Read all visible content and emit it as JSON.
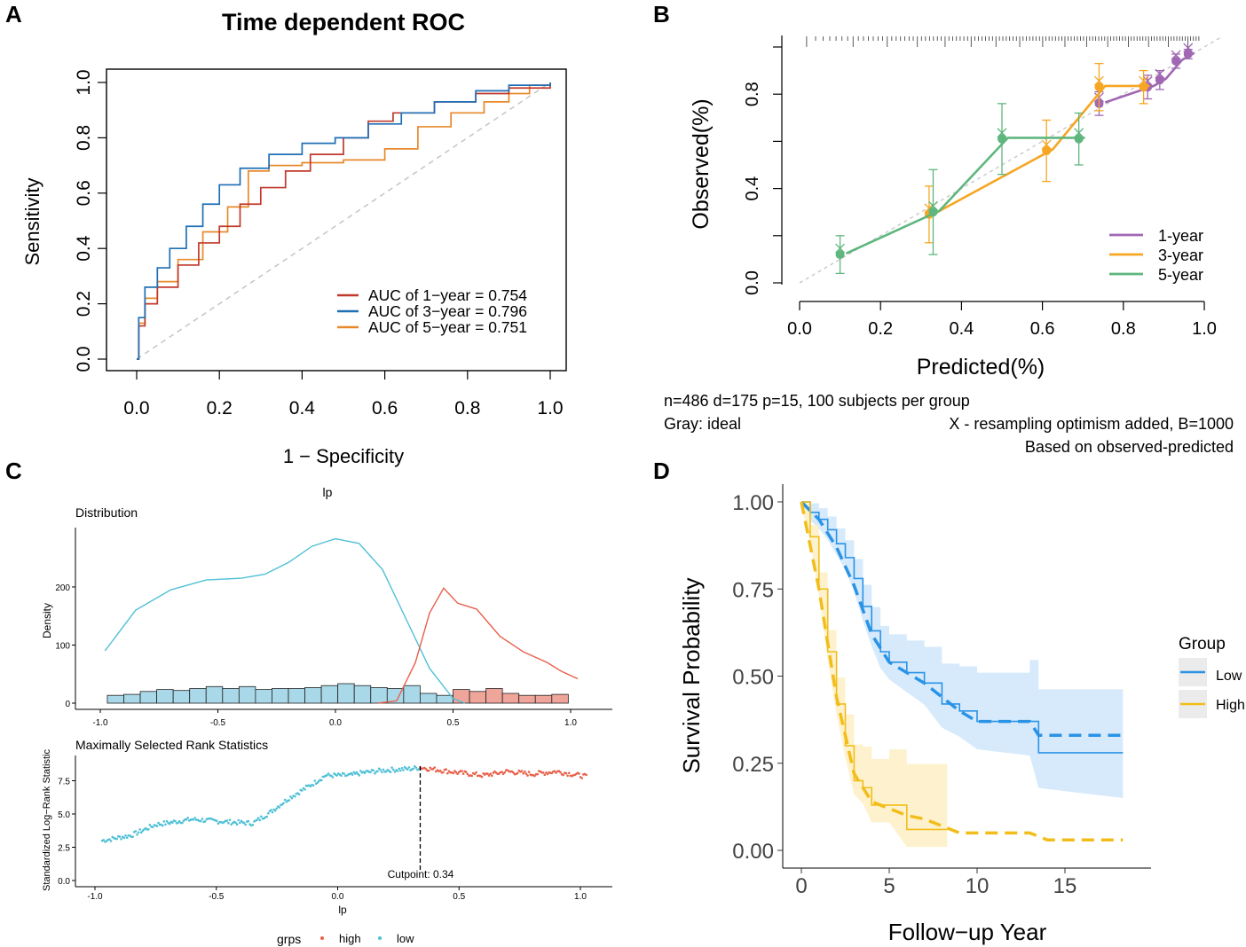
{
  "colors": {
    "red": "#c0392b",
    "blue": "#1f6fb5",
    "orange": "#e8892b",
    "purple": "#a067b3",
    "cal_orange": "#f6a623",
    "green": "#5fb67e",
    "teal": "#4fc0d6",
    "coral": "#e8604b",
    "surv_low": "#2a93e6",
    "surv_high": "#f2bd1a",
    "ci_low": "#cfe6fb",
    "ci_high": "#fdf1c8",
    "ideal": "#c8c8c8"
  },
  "chart_data": [
    {
      "panel": "A",
      "type": "line",
      "title": "Time dependent ROC",
      "xlabel": "1 − Specificity",
      "ylabel": "Sensitivity",
      "xlim": [
        0,
        1
      ],
      "ylim": [
        0,
        1
      ],
      "xticks": [
        "0.0",
        "0.2",
        "0.4",
        "0.6",
        "0.8",
        "1.0"
      ],
      "yticks": [
        "0.0",
        "0.2",
        "0.4",
        "0.6",
        "0.8",
        "1.0"
      ],
      "legend": [
        "AUC of 1−year = 0.754",
        "AUC of 3−year = 0.796",
        "AUC of 5−year = 0.751"
      ],
      "series": [
        {
          "name": "1-year",
          "color": "red",
          "points": [
            [
              0,
              0
            ],
            [
              0.005,
              0.12
            ],
            [
              0.02,
              0.2
            ],
            [
              0.05,
              0.26
            ],
            [
              0.1,
              0.34
            ],
            [
              0.15,
              0.42
            ],
            [
              0.2,
              0.48
            ],
            [
              0.25,
              0.56
            ],
            [
              0.3,
              0.62
            ],
            [
              0.36,
              0.68
            ],
            [
              0.42,
              0.74
            ],
            [
              0.5,
              0.8
            ],
            [
              0.56,
              0.86
            ],
            [
              0.62,
              0.89
            ],
            [
              0.72,
              0.93
            ],
            [
              0.82,
              0.96
            ],
            [
              0.9,
              0.98
            ],
            [
              1,
              1
            ]
          ]
        },
        {
          "name": "3-year",
          "color": "blue",
          "points": [
            [
              0,
              0
            ],
            [
              0.005,
              0.15
            ],
            [
              0.02,
              0.26
            ],
            [
              0.05,
              0.33
            ],
            [
              0.08,
              0.4
            ],
            [
              0.12,
              0.48
            ],
            [
              0.16,
              0.56
            ],
            [
              0.2,
              0.63
            ],
            [
              0.25,
              0.69
            ],
            [
              0.32,
              0.74
            ],
            [
              0.4,
              0.78
            ],
            [
              0.48,
              0.8
            ],
            [
              0.56,
              0.85
            ],
            [
              0.64,
              0.89
            ],
            [
              0.72,
              0.93
            ],
            [
              0.82,
              0.97
            ],
            [
              0.9,
              0.99
            ],
            [
              1,
              1
            ]
          ]
        },
        {
          "name": "5-year",
          "color": "orange",
          "points": [
            [
              0,
              0
            ],
            [
              0.005,
              0.13
            ],
            [
              0.02,
              0.22
            ],
            [
              0.05,
              0.28
            ],
            [
              0.1,
              0.36
            ],
            [
              0.16,
              0.46
            ],
            [
              0.22,
              0.55
            ],
            [
              0.27,
              0.68
            ],
            [
              0.32,
              0.7
            ],
            [
              0.4,
              0.71
            ],
            [
              0.5,
              0.72
            ],
            [
              0.6,
              0.76
            ],
            [
              0.68,
              0.84
            ],
            [
              0.76,
              0.89
            ],
            [
              0.84,
              0.93
            ],
            [
              0.9,
              0.96
            ],
            [
              0.95,
              0.99
            ],
            [
              1,
              1
            ]
          ]
        }
      ]
    },
    {
      "panel": "B",
      "type": "line",
      "xlabel": "Predicted(%)",
      "ylabel": "Observed(%)",
      "xlim": [
        0,
        1
      ],
      "ylim": [
        0,
        1
      ],
      "xticks": [
        "0.0",
        "0.2",
        "0.4",
        "0.6",
        "0.8",
        "1.0"
      ],
      "yticks": [
        "0.0",
        "0.4",
        "0.8"
      ],
      "legend": [
        "1-year",
        "3-year",
        "5-year"
      ],
      "series": [
        {
          "name": "1-year",
          "color": "purple",
          "points": [
            [
              0.74,
              0.76
            ],
            [
              0.86,
              0.83
            ],
            [
              0.89,
              0.86
            ],
            [
              0.93,
              0.94
            ],
            [
              0.96,
              0.97
            ]
          ],
          "err": [
            0.05,
            0.05,
            0.04,
            0.03,
            0.02
          ]
        },
        {
          "name": "3-year",
          "color": "cal_orange",
          "points": [
            [
              0.32,
              0.29
            ],
            [
              0.61,
              0.56
            ],
            [
              0.74,
              0.83
            ],
            [
              0.85,
              0.83
            ]
          ],
          "err": [
            0.12,
            0.13,
            0.1,
            0.07
          ]
        },
        {
          "name": "5-year",
          "color": "green",
          "points": [
            [
              0.1,
              0.12
            ],
            [
              0.33,
              0.3
            ],
            [
              0.5,
              0.61
            ],
            [
              0.69,
              0.61
            ]
          ],
          "err": [
            0.08,
            0.18,
            0.15,
            0.11
          ]
        }
      ],
      "notes": {
        "line1": "n=486 d=175 p=15, 100 subjects per group",
        "line2": "Gray: ideal",
        "line3": "X - resampling optimism added, B=1000",
        "line4": "Based on observed-predicted"
      }
    },
    {
      "panel": "C-top",
      "type": "area",
      "title": "lp",
      "subtitle": "Distribution",
      "ylabel": "Density",
      "xlim": [
        -1,
        1.05
      ],
      "ylim": [
        0,
        290
      ],
      "xticks": [
        "-1.0",
        "-0.5",
        "0.0",
        "0.5",
        "1.0"
      ],
      "yticks": [
        "0",
        "100",
        "200"
      ],
      "series": [
        {
          "name": "low",
          "color": "teal",
          "points": [
            [
              -0.98,
              90
            ],
            [
              -0.85,
              160
            ],
            [
              -0.7,
              195
            ],
            [
              -0.55,
              212
            ],
            [
              -0.4,
              215
            ],
            [
              -0.3,
              222
            ],
            [
              -0.2,
              242
            ],
            [
              -0.1,
              270
            ],
            [
              0,
              283
            ],
            [
              0.1,
              275
            ],
            [
              0.2,
              230
            ],
            [
              0.3,
              145
            ],
            [
              0.4,
              60
            ],
            [
              0.5,
              8
            ],
            [
              0.55,
              0
            ]
          ]
        },
        {
          "name": "high",
          "color": "coral",
          "points": [
            [
              0.18,
              0
            ],
            [
              0.26,
              4
            ],
            [
              0.34,
              70
            ],
            [
              0.4,
              155
            ],
            [
              0.46,
              198
            ],
            [
              0.52,
              172
            ],
            [
              0.6,
              162
            ],
            [
              0.7,
              115
            ],
            [
              0.8,
              88
            ],
            [
              0.9,
              70
            ],
            [
              0.96,
              55
            ],
            [
              1.03,
              42
            ]
          ]
        }
      ],
      "histogram": {
        "bins": [
          -0.97,
          -0.9,
          -0.83,
          -0.76,
          -0.69,
          -0.62,
          -0.55,
          -0.48,
          -0.41,
          -0.34,
          -0.27,
          -0.2,
          -0.13,
          -0.06,
          0.01,
          0.08,
          0.15,
          0.22,
          0.29,
          0.36,
          0.43,
          0.5,
          0.57,
          0.64,
          0.71,
          0.78,
          0.85,
          0.92,
          0.99
        ],
        "counts": [
          8,
          9,
          12,
          14,
          13,
          15,
          17,
          15,
          17,
          14,
          15,
          15,
          16,
          18,
          20,
          18,
          16,
          15,
          18,
          10,
          8,
          14,
          12,
          15,
          10,
          8,
          8,
          9
        ],
        "groups": [
          "low",
          "low",
          "low",
          "low",
          "low",
          "low",
          "low",
          "low",
          "low",
          "low",
          "low",
          "low",
          "low",
          "low",
          "low",
          "low",
          "low",
          "low",
          "low",
          "low",
          "low",
          "high",
          "high",
          "high",
          "high",
          "high",
          "high",
          "high"
        ]
      }
    },
    {
      "panel": "C-bottom",
      "type": "scatter",
      "subtitle": "Maximally Selected Rank Statistics",
      "xlabel": "lp",
      "ylabel": "Standardized Log−Rank Statistic",
      "xlim": [
        -1,
        1.05
      ],
      "ylim": [
        0,
        9
      ],
      "xticks": [
        "-1.0",
        "-0.5",
        "0.0",
        "0.5",
        "1.0"
      ],
      "yticks": [
        "0.0",
        "2.5",
        "5.0",
        "7.5"
      ],
      "cutpoint": 0.34,
      "cutpoint_label": "Cutpoint: 0.34",
      "legend_title": "grps",
      "legend": [
        "high",
        "low"
      ],
      "curve": [
        [
          -0.97,
          3.0
        ],
        [
          -0.85,
          3.4
        ],
        [
          -0.75,
          4.2
        ],
        [
          -0.6,
          4.6
        ],
        [
          -0.45,
          4.4
        ],
        [
          -0.35,
          4.3
        ],
        [
          -0.28,
          5.1
        ],
        [
          -0.2,
          6.2
        ],
        [
          -0.1,
          7.3
        ],
        [
          -0.05,
          7.9
        ],
        [
          0.05,
          7.9
        ],
        [
          0.1,
          8.1
        ],
        [
          0.2,
          8.3
        ],
        [
          0.3,
          8.4
        ],
        [
          0.34,
          8.5
        ],
        [
          0.5,
          8.1
        ],
        [
          0.6,
          7.9
        ],
        [
          0.7,
          8.2
        ],
        [
          0.8,
          8.0
        ],
        [
          0.9,
          8.2
        ],
        [
          1.03,
          7.8
        ]
      ]
    },
    {
      "panel": "D",
      "type": "line",
      "xlabel": "Follow−up Year",
      "ylabel": "Survival Probability",
      "xlim": [
        0,
        19
      ],
      "ylim": [
        0,
        1
      ],
      "xticks": [
        "0",
        "5",
        "10",
        "15"
      ],
      "yticks": [
        "0.00",
        "0.25",
        "0.50",
        "0.75",
        "1.00"
      ],
      "legend_title": "Group",
      "legend": [
        "Low",
        "High"
      ],
      "series": [
        {
          "name": "Low",
          "color": "surv_low",
          "points": [
            [
              0,
              1
            ],
            [
              0.5,
              0.97
            ],
            [
              1,
              0.95
            ],
            [
              1.5,
              0.92
            ],
            [
              2,
              0.88
            ],
            [
              2.5,
              0.84
            ],
            [
              3,
              0.78
            ],
            [
              3.5,
              0.7
            ],
            [
              4,
              0.63
            ],
            [
              4.5,
              0.57
            ],
            [
              5,
              0.54
            ],
            [
              6,
              0.51
            ],
            [
              7,
              0.48
            ],
            [
              8,
              0.42
            ],
            [
              9,
              0.4
            ],
            [
              10,
              0.37
            ],
            [
              13,
              0.37
            ],
            [
              13.5,
              0.28
            ],
            [
              18.3,
              0.28
            ]
          ]
        },
        {
          "name": "High",
          "color": "surv_high",
          "points": [
            [
              0,
              1
            ],
            [
              0.5,
              0.9
            ],
            [
              1,
              0.75
            ],
            [
              1.5,
              0.57
            ],
            [
              2,
              0.42
            ],
            [
              2.5,
              0.3
            ],
            [
              3,
              0.2
            ],
            [
              3.5,
              0.18
            ],
            [
              4,
              0.13
            ],
            [
              5,
              0.13
            ],
            [
              6,
              0.06
            ],
            [
              8.3,
              0.06
            ]
          ]
        }
      ],
      "fitted": [
        {
          "name": "Low",
          "points": [
            [
              0,
              1
            ],
            [
              1,
              0.95
            ],
            [
              2,
              0.87
            ],
            [
              3,
              0.76
            ],
            [
              4,
              0.62
            ],
            [
              5,
              0.54
            ],
            [
              7,
              0.48
            ],
            [
              9,
              0.4
            ],
            [
              10,
              0.37
            ],
            [
              13,
              0.37
            ],
            [
              13.5,
              0.33
            ],
            [
              18.3,
              0.33
            ]
          ]
        },
        {
          "name": "High",
          "points": [
            [
              0,
              1
            ],
            [
              1,
              0.75
            ],
            [
              2,
              0.44
            ],
            [
              3,
              0.22
            ],
            [
              4,
              0.14
            ],
            [
              6,
              0.1
            ],
            [
              7,
              0.09
            ],
            [
              8,
              0.07
            ],
            [
              9,
              0.05
            ],
            [
              13,
              0.05
            ],
            [
              14,
              0.03
            ],
            [
              18.3,
              0.03
            ]
          ]
        }
      ]
    }
  ],
  "panel_labels": [
    "A",
    "B",
    "C",
    "D"
  ]
}
